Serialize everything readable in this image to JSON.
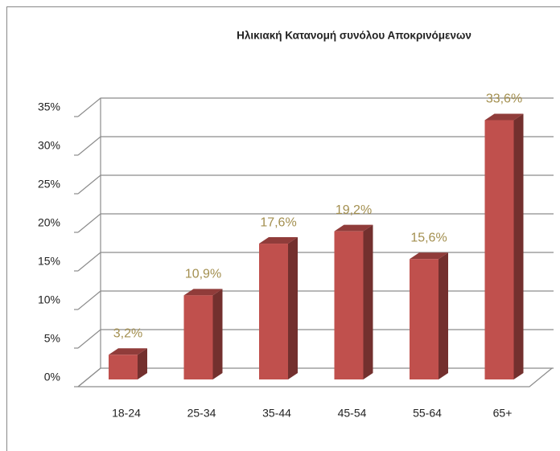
{
  "chart_data": {
    "type": "bar3d",
    "title": "Ηλικιακή Κατανομή συνόλου Αποκρινόμενων",
    "categories": [
      "18-24",
      "25-34",
      "35-44",
      "45-54",
      "55-64",
      "65+"
    ],
    "values": [
      3.2,
      10.9,
      17.6,
      19.2,
      15.6,
      33.6
    ],
    "value_labels": [
      "3,2%",
      "10,9%",
      "17,6%",
      "19,2%",
      "15,6%",
      "33,6%"
    ],
    "color": "#c0504d",
    "label_color": "#a38f4f",
    "ylim": [
      0,
      35
    ],
    "yticks": [
      {
        "value": 0,
        "label": "0%"
      },
      {
        "value": 5,
        "label": "5%"
      },
      {
        "value": 10,
        "label": "10%"
      },
      {
        "value": 15,
        "label": "15%"
      },
      {
        "value": 20,
        "label": "20%"
      },
      {
        "value": 25,
        "label": "25%"
      },
      {
        "value": 30,
        "label": "30%"
      },
      {
        "value": 35,
        "label": "35%"
      }
    ],
    "grid": true
  }
}
